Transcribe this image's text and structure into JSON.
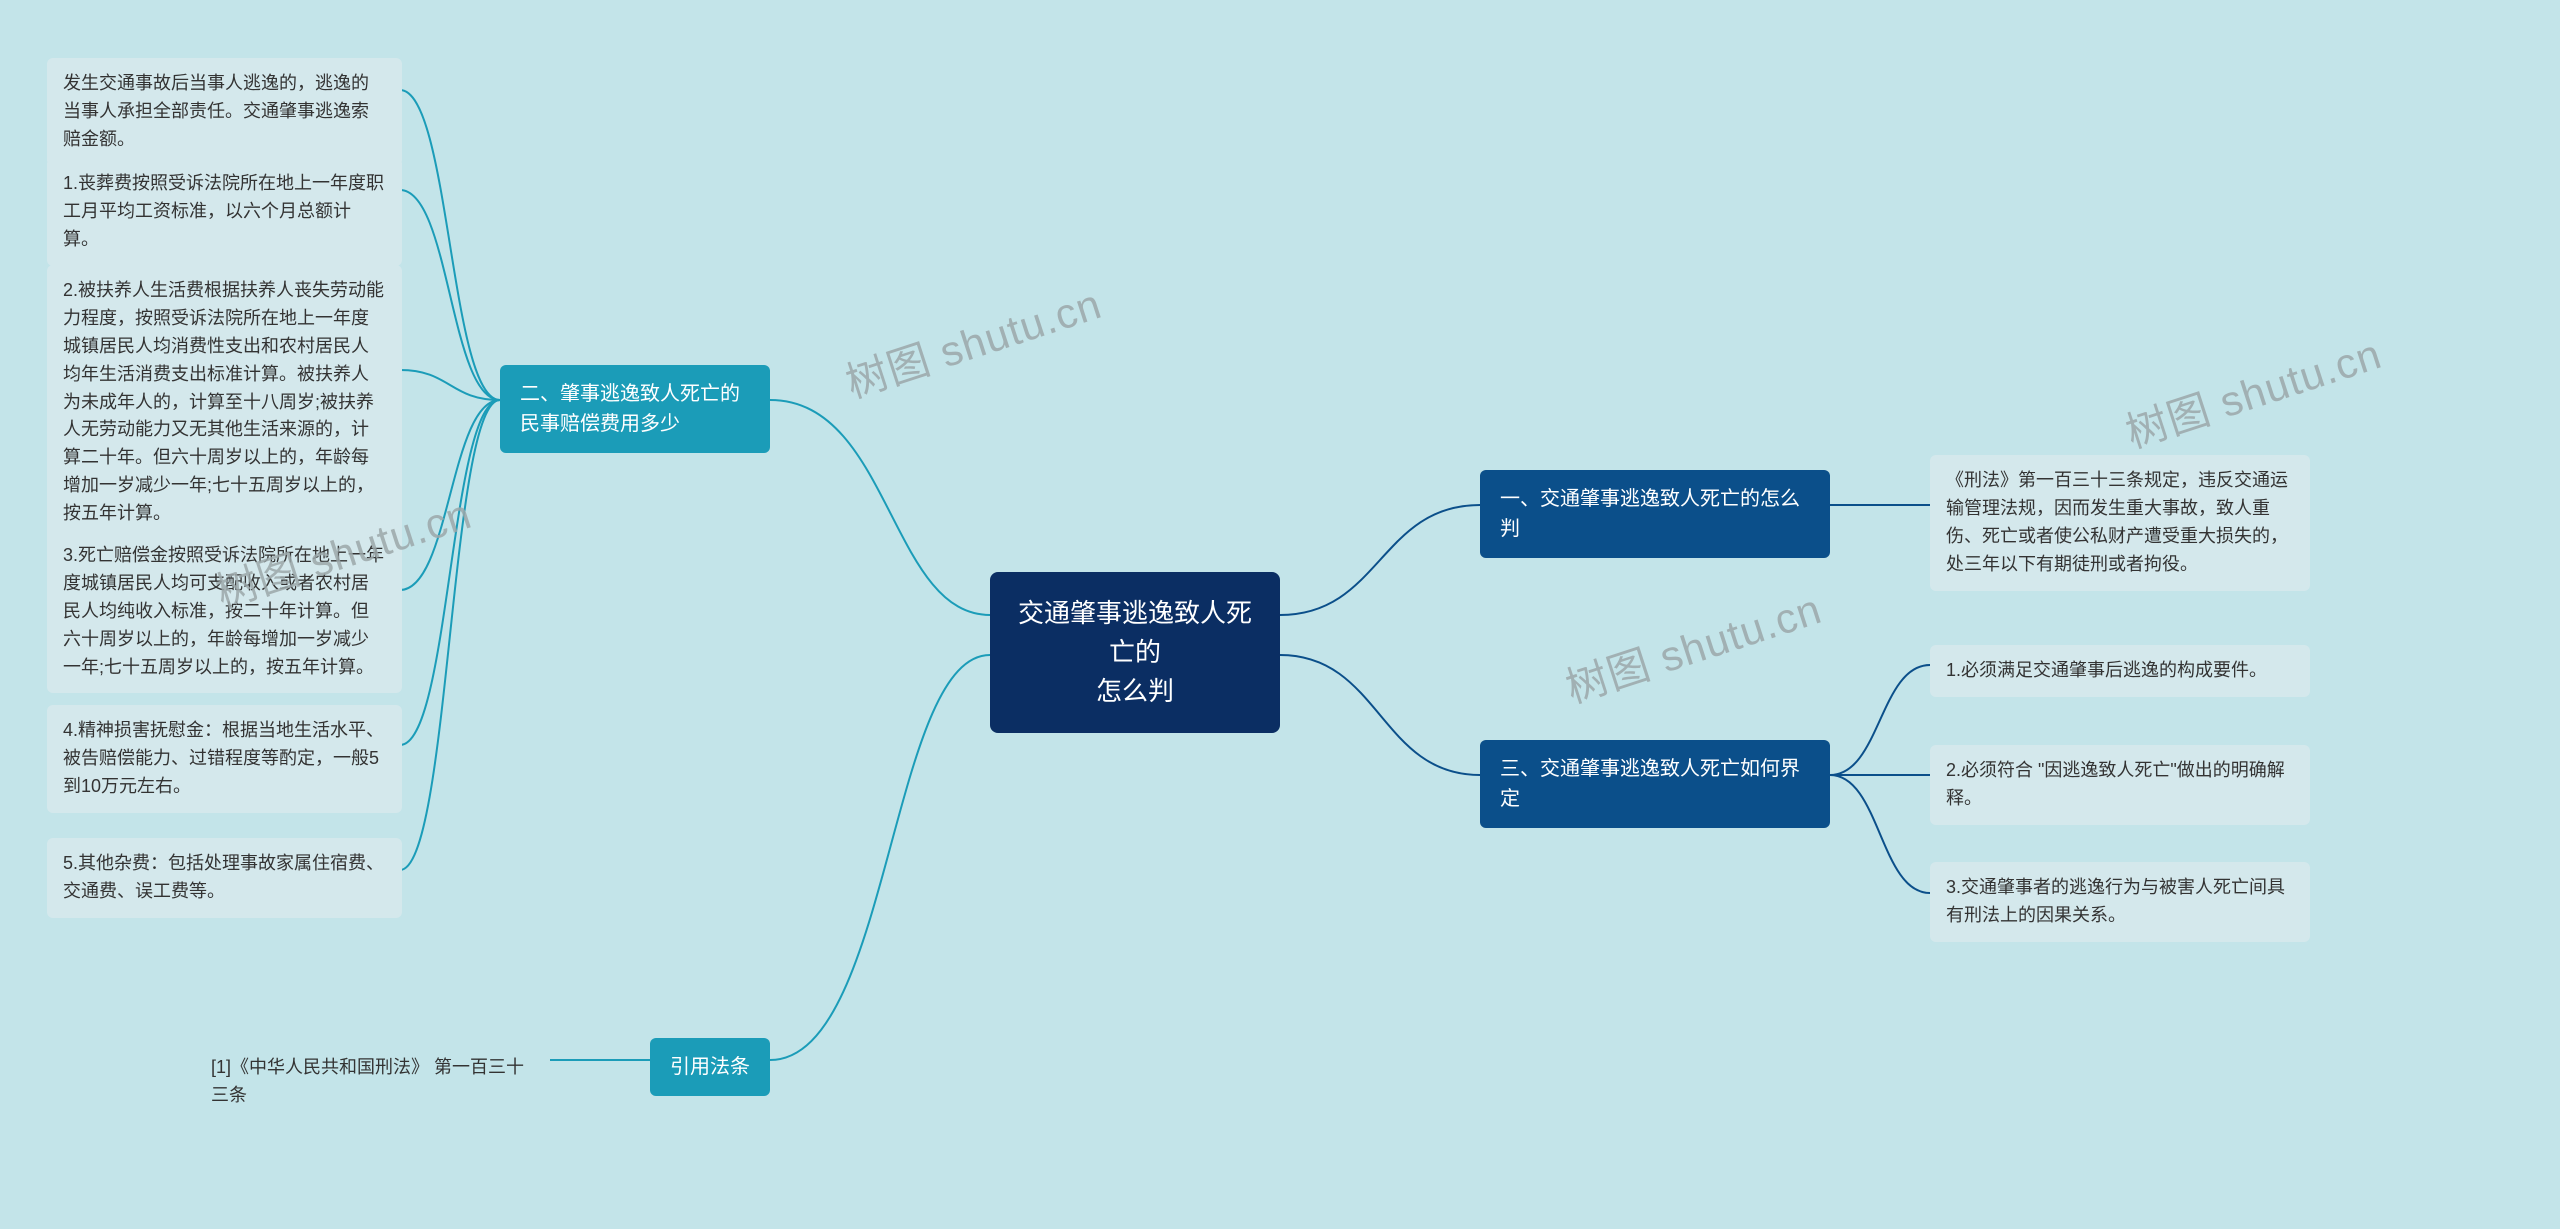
{
  "diagram": {
    "background_color": "#c3e4e9",
    "leaf_bg_color": "#d4e8ec",
    "center": {
      "text": "交通肇事逃逸致人死亡的\n怎么判",
      "bg_color": "#0b2e63",
      "text_color": "#ffffff",
      "fontsize": 26
    },
    "branches": {
      "b1": {
        "label": "一、交通肇事逃逸致人死亡的怎么判",
        "bg_color": "#0b4f8a",
        "leaves": {
          "l1": "《刑法》第一百三十三条规定，违反交通运输管理法规，因而发生重大事故，致人重伤、死亡或者使公私财产遭受重大损失的，处三年以下有期徒刑或者拘役。"
        }
      },
      "b2": {
        "label": "二、肇事逃逸致人死亡的民事赔偿费用多少",
        "bg_color": "#1b9cb8",
        "leaves": {
          "l0": "发生交通事故后当事人逃逸的，逃逸的当事人承担全部责任。交通肇事逃逸索赔金额。",
          "l1": "1.丧葬费按照受诉法院所在地上一年度职工月平均工资标准，以六个月总额计算。",
          "l2": "2.被扶养人生活费根据扶养人丧失劳动能力程度，按照受诉法院所在地上一年度城镇居民人均消费性支出和农村居民人均年生活消费支出标准计算。被扶养人为未成年人的，计算至十八周岁;被扶养人无劳动能力又无其他生活来源的，计算二十年。但六十周岁以上的，年龄每增加一岁减少一年;七十五周岁以上的，按五年计算。",
          "l3": "3.死亡赔偿金按照受诉法院所在地上一年度城镇居民人均可支配收入或者农村居民人均纯收入标准，按二十年计算。但六十周岁以上的，年龄每增加一岁减少一年;七十五周岁以上的，按五年计算。",
          "l4": "4.精神损害抚慰金：根据当地生活水平、被告赔偿能力、过错程度等酌定，一般5到10万元左右。",
          "l5": "5.其他杂费：包括处理事故家属住宿费、交通费、误工费等。"
        }
      },
      "b3": {
        "label": "三、交通肇事逃逸致人死亡如何界定",
        "bg_color": "#0b4f8a",
        "leaves": {
          "l1": "1.必须满足交通肇事后逃逸的构成要件。",
          "l2": "2.必须符合 \"因逃逸致人死亡\"做出的明确解释。",
          "l3": "3.交通肇事者的逃逸行为与被害人死亡间具有刑法上的因果关系。"
        }
      },
      "b4": {
        "label": "引用法条",
        "bg_color": "#1b9cb8",
        "leaves": {
          "l1": "[1]《中华人民共和国刑法》 第一百三十三条"
        }
      }
    },
    "watermark_text": "树图 shutu.cn",
    "connector_color": "#1b9cb8",
    "connector_color_right": "#0b4f8a"
  }
}
